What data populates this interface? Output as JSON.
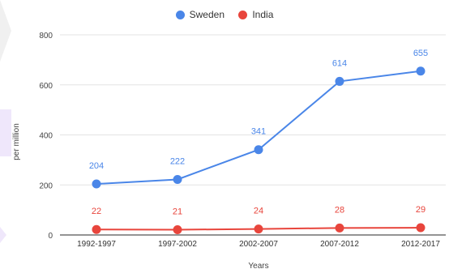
{
  "chart_data": {
    "type": "line",
    "title": "",
    "xlabel": "Years",
    "ylabel": "per million",
    "categories": [
      "1992-1997",
      "1997-2002",
      "2002-2007",
      "2007-2012",
      "2012-2017"
    ],
    "ylim": [
      0,
      800
    ],
    "yticks": [
      0,
      200,
      400,
      600,
      800
    ],
    "grid": true,
    "legend": "top-center",
    "series": [
      {
        "name": "Sweden",
        "color": "#4a86e8",
        "values": [
          204,
          222,
          341,
          614,
          655
        ]
      },
      {
        "name": "India",
        "color": "#e8453c",
        "values": [
          22,
          21,
          24,
          28,
          29
        ]
      }
    ]
  }
}
